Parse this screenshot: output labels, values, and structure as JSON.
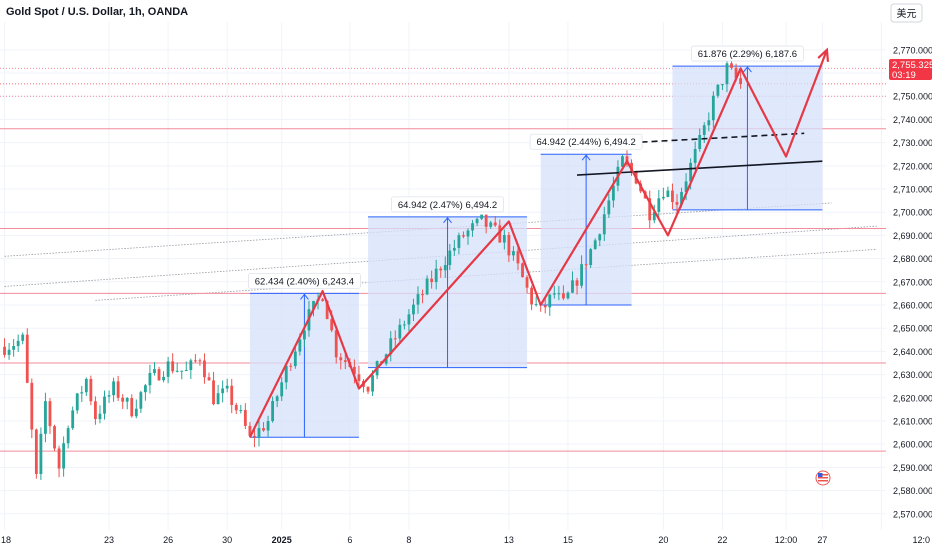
{
  "header": {
    "title": "Gold Spot / U.S. Dollar, 1h, OANDA",
    "currency": "美元"
  },
  "colors": {
    "up": "#26a69a",
    "down": "#ef5350",
    "zone": "#d6e0fb",
    "blue": "#2962ff",
    "red": "#e53946",
    "hline": "#f28b9b"
  },
  "price_tag": {
    "price": "2,755.325",
    "time": "03:19"
  },
  "chart_data": {
    "type": "candlestick",
    "title": "Gold Spot / U.S. Dollar, 1h, OANDA",
    "ylim": [
      2563,
      2782
    ],
    "y_ticks": [
      2570,
      2580,
      2590,
      2600,
      2610,
      2620,
      2630,
      2640,
      2650,
      2660,
      2670,
      2680,
      2690,
      2700,
      2710,
      2720,
      2730,
      2740,
      2750,
      2760,
      2770
    ],
    "y_tick_labels": [
      "2,570.000",
      "2,580.000",
      "2,590.000",
      "2,600.000",
      "2,610.000",
      "2,620.000",
      "2,630.000",
      "2,640.000",
      "2,650.000",
      "2,660.000",
      "2,670.000",
      "2,680.000",
      "2,690.000",
      "2,700.000",
      "2,710.000",
      "2,720.000",
      "2,730.000",
      "2,740.000",
      "2,750.000",
      "2,760.000",
      "2,770.000"
    ],
    "x_tick_labels": [
      "18",
      "23",
      "26",
      "30",
      "2025",
      "6",
      "8",
      "13",
      "15",
      "20",
      "22",
      "12:00",
      "27",
      "12:0"
    ],
    "x_ticks_bar": [
      0,
      23,
      36,
      49,
      61,
      76,
      89,
      111,
      124,
      145,
      158,
      172,
      180,
      193
    ],
    "bar_range": [
      -1,
      194
    ],
    "price_series": [
      [
        0,
        2642
      ],
      [
        4,
        2645
      ],
      [
        7,
        2585
      ],
      [
        9,
        2618
      ],
      [
        12,
        2590
      ],
      [
        14,
        2610
      ],
      [
        18,
        2628
      ],
      [
        20,
        2612
      ],
      [
        24,
        2624
      ],
      [
        28,
        2615
      ],
      [
        32,
        2628
      ],
      [
        36,
        2634
      ],
      [
        40,
        2631
      ],
      [
        43,
        2638
      ],
      [
        46,
        2620
      ],
      [
        49,
        2622
      ],
      [
        52,
        2612
      ],
      [
        54,
        2602
      ],
      [
        58,
        2610
      ],
      [
        62,
        2632
      ],
      [
        66,
        2652
      ],
      [
        70,
        2665
      ],
      [
        73,
        2640
      ],
      [
        77,
        2632
      ],
      [
        80,
        2625
      ],
      [
        83,
        2636
      ],
      [
        86,
        2646
      ],
      [
        89,
        2656
      ],
      [
        93,
        2668
      ],
      [
        97,
        2680
      ],
      [
        101,
        2690
      ],
      [
        105,
        2696
      ],
      [
        110,
        2688
      ],
      [
        113,
        2676
      ],
      [
        116,
        2662
      ],
      [
        118,
        2657
      ],
      [
        121,
        2665
      ],
      [
        123,
        2660
      ],
      [
        127,
        2675
      ],
      [
        130,
        2688
      ],
      [
        133,
        2705
      ],
      [
        136,
        2722
      ],
      [
        139,
        2715
      ],
      [
        142,
        2700
      ],
      [
        145,
        2710
      ],
      [
        148,
        2705
      ],
      [
        150,
        2715
      ],
      [
        153,
        2730
      ],
      [
        156,
        2748
      ],
      [
        159,
        2762
      ],
      [
        162,
        2755
      ]
    ],
    "horizontal_levels": [
      2762,
      2750,
      2736,
      2693,
      2665,
      2635,
      2597
    ],
    "zigzag_red": [
      [
        54,
        2603
      ],
      [
        70,
        2666
      ],
      [
        78,
        2624
      ],
      [
        111,
        2696
      ],
      [
        118,
        2660
      ],
      [
        137,
        2722
      ],
      [
        146,
        2690
      ],
      [
        162,
        2762
      ],
      [
        172,
        2724
      ],
      [
        181,
        2770
      ]
    ],
    "measure_boxes": [
      {
        "label": "62.434 (2.40%) 6,243.4",
        "x0": 54,
        "x1": 78,
        "y_low": 2603,
        "y_high": 2665
      },
      {
        "label": "64.942 (2.47%) 6,494.2",
        "x0": 80,
        "x1": 115,
        "y_low": 2633,
        "y_high": 2698
      },
      {
        "label": "64.942 (2.44%) 6,494.2",
        "x0": 118,
        "x1": 138,
        "y_low": 2660,
        "y_high": 2725
      },
      {
        "label": "61.876 (2.29%) 6,187.6",
        "x0": 147,
        "x1": 180,
        "y_low": 2701,
        "y_high": 2763
      }
    ],
    "trend_lines": [
      {
        "style": "solid",
        "from": [
          126,
          2716
        ],
        "to": [
          180,
          2722
        ]
      },
      {
        "style": "dashed",
        "from": [
          138,
          2730
        ],
        "to": [
          176,
          2734
        ]
      }
    ],
    "channel_lines": [
      [
        [
          0,
          2668
        ],
        [
          192,
          2694
        ]
      ],
      [
        [
          0,
          2681
        ],
        [
          182,
          2704
        ]
      ],
      [
        [
          20,
          2662
        ],
        [
          192,
          2684
        ]
      ]
    ],
    "current_price": 2755.325
  }
}
